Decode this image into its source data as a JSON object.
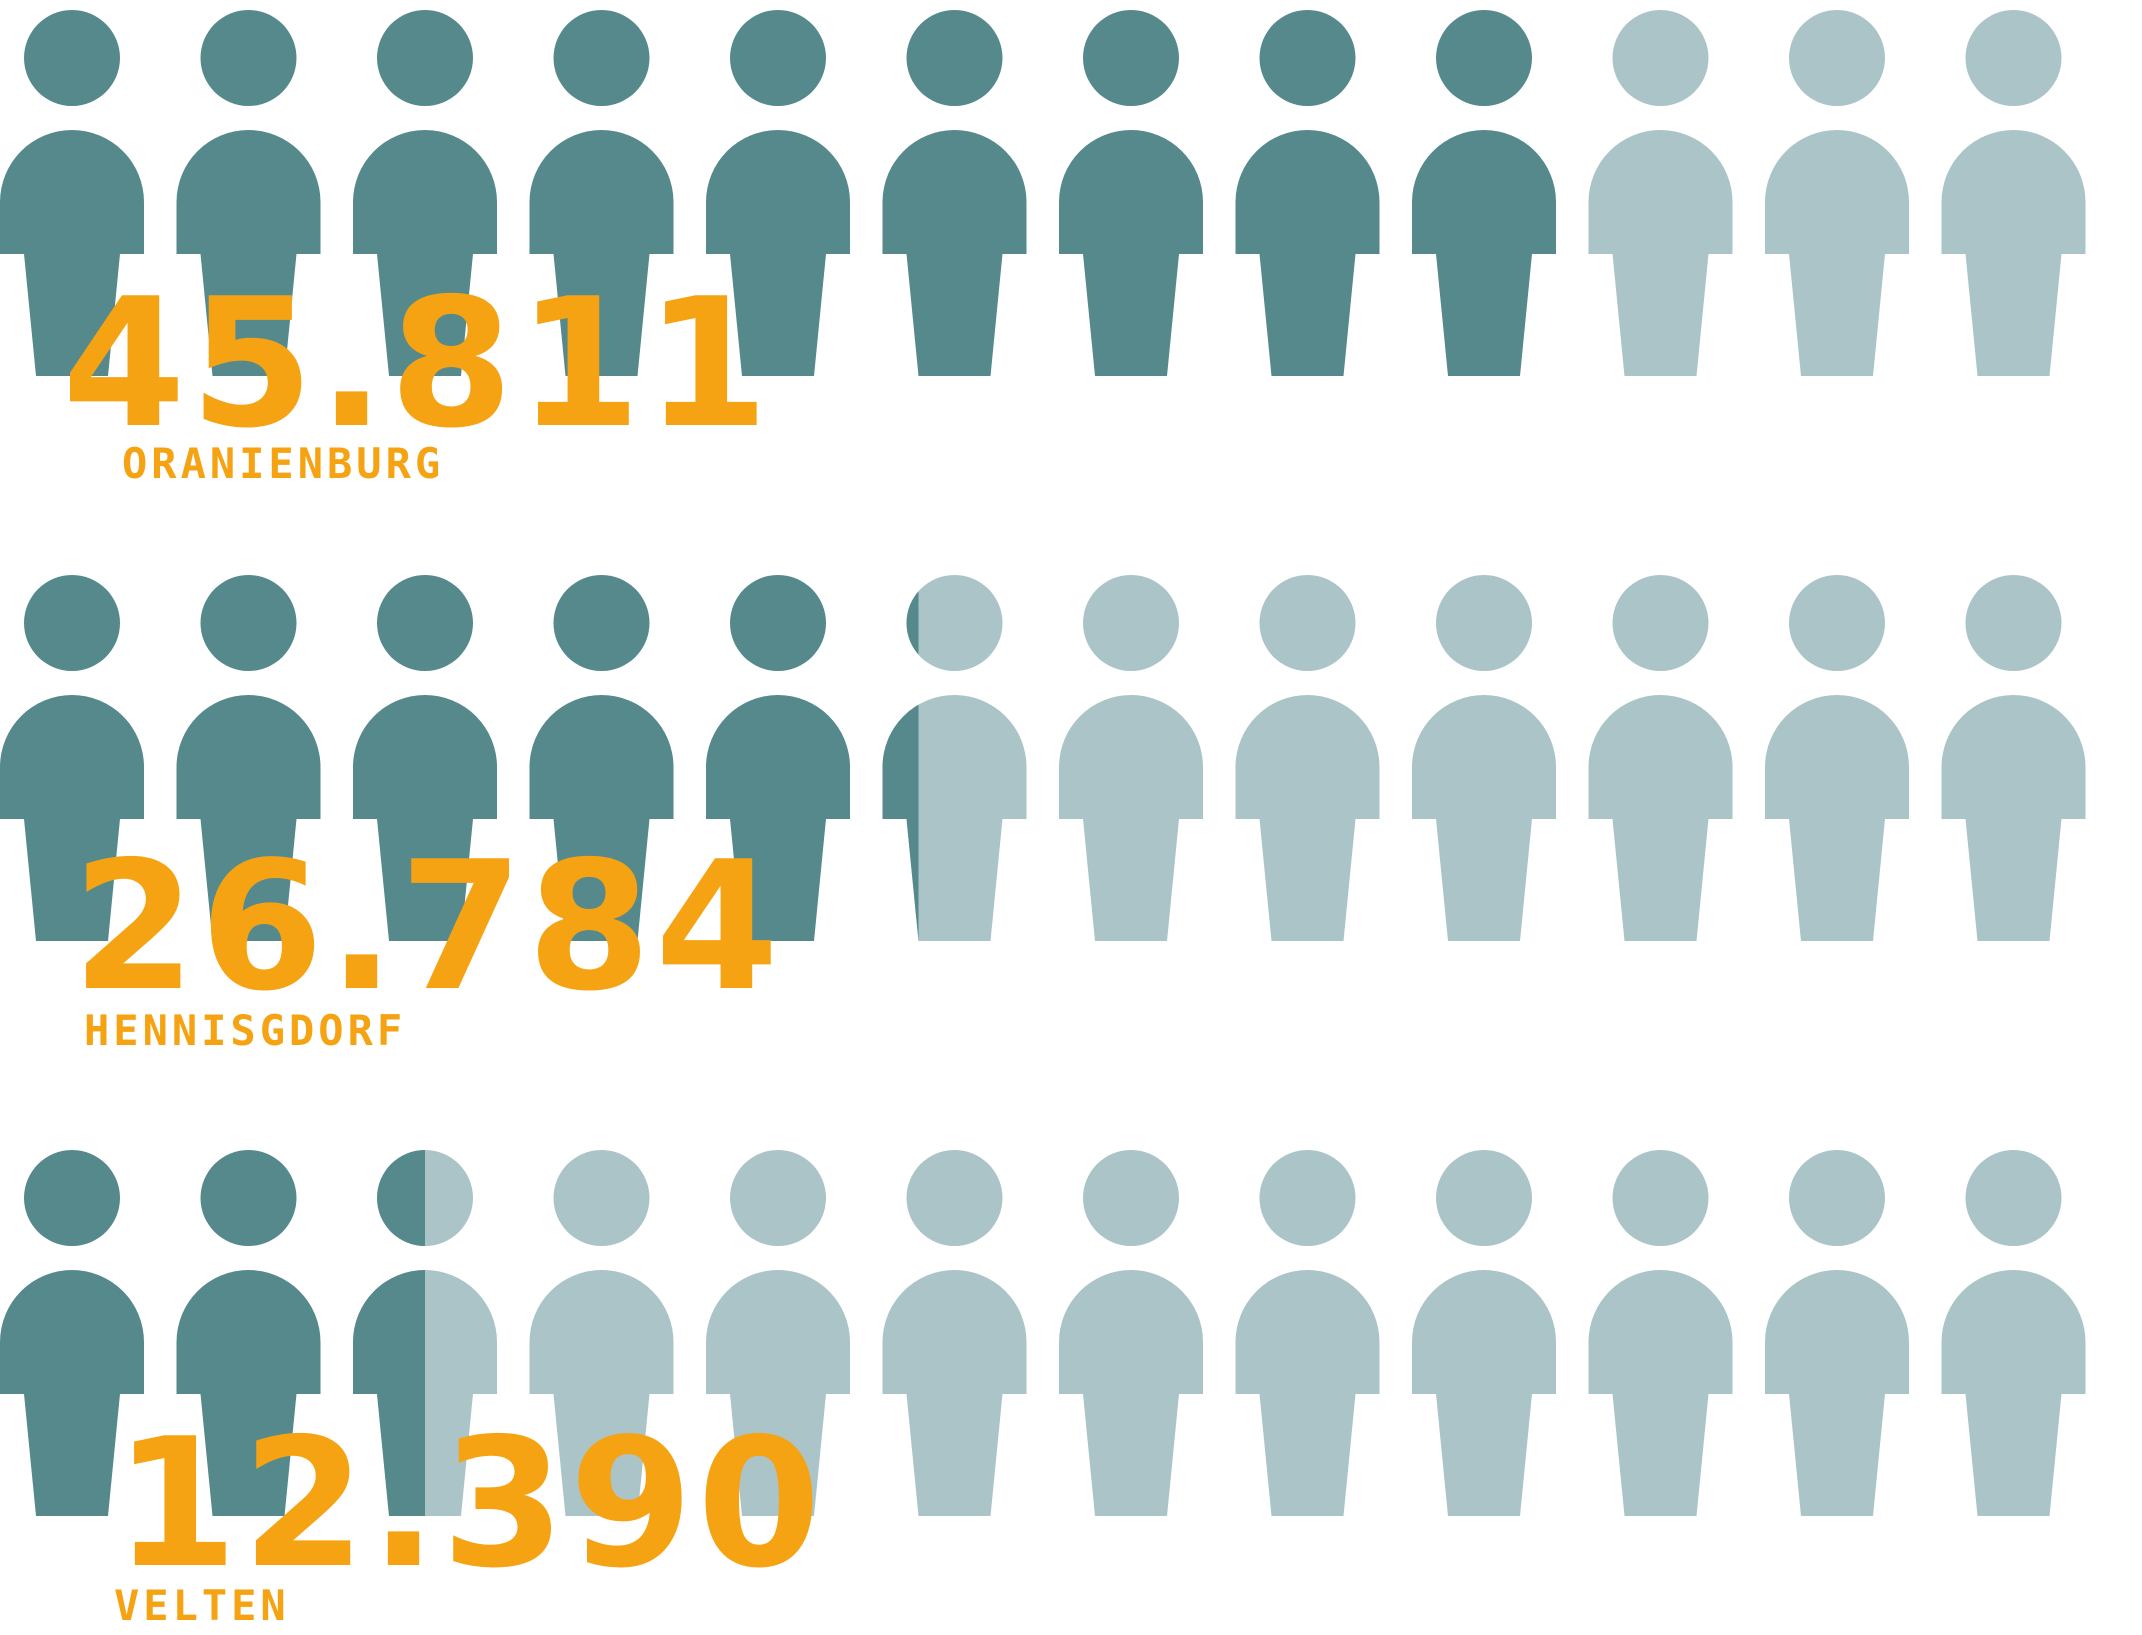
{
  "colors": {
    "filled": "#56898c",
    "empty": "#abc4c7",
    "accent": "#f5a312",
    "background": "#ffffff"
  },
  "icon": "person-icon",
  "chart_data": {
    "type": "pictogram",
    "icons_per_row": 12,
    "rows": [
      {
        "city": "ORANIENBURG",
        "value_label": "45.811",
        "value": 45811,
        "filled_icons": 9.0
      },
      {
        "city": "HENNISGDORF",
        "value_label": "26.784",
        "value": 26784,
        "filled_icons": 5.25
      },
      {
        "city": "VELTEN",
        "value_label": "12.390",
        "value": 12390,
        "filled_icons": 2.5
      }
    ]
  }
}
